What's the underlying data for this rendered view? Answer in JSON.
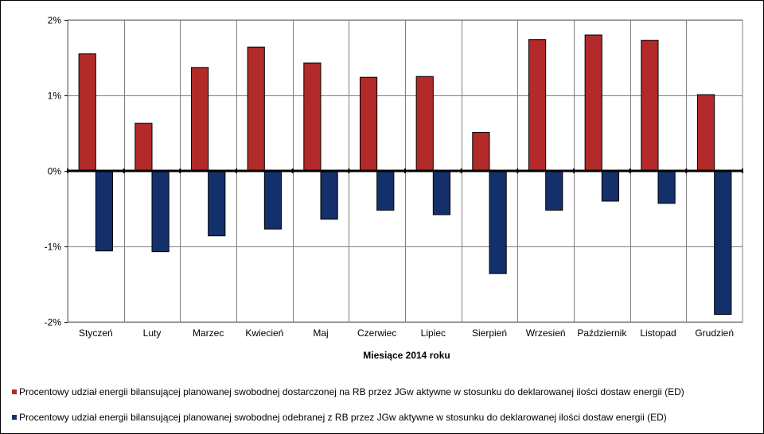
{
  "chart_data": {
    "type": "bar",
    "xlabel": "Miesiące 2014 roku",
    "ylabel": "",
    "title": "",
    "ylim": [
      -2,
      2
    ],
    "yticks": [
      2,
      1,
      0,
      -1,
      -2
    ],
    "ytick_labels": [
      "2%",
      "1%",
      "0%",
      "-1%",
      "-2%"
    ],
    "grid": true,
    "legend_position": "bottom",
    "categories": [
      "Styczeń",
      "Luty",
      "Marzec",
      "Kwiecień",
      "Maj",
      "Czerwiec",
      "Lipiec",
      "Sierpień",
      "Wrzesień",
      "Październik",
      "Listopad",
      "Grudzień"
    ],
    "series": [
      {
        "name": "Procentowy udział energii bilansującej planowanej swobodnej dostarczonej na RB przez JGw aktywne w stosunku do deklarowanej ilości dostaw energii (ED)",
        "color": "#b22a2a",
        "values": [
          1.55,
          0.63,
          1.37,
          1.64,
          1.43,
          1.24,
          1.25,
          0.51,
          1.74,
          1.8,
          1.73,
          1.01
        ]
      },
      {
        "name": "Procentowy udział energii bilansującej planowanej swobodnej odebranej z RB przez JGw aktywne w stosunku do deklarowanej ilości dostaw energii (ED)",
        "color": "#14306a",
        "values": [
          -1.06,
          -1.07,
          -0.86,
          -0.77,
          -0.64,
          -0.52,
          -0.58,
          -1.36,
          -0.52,
          -0.4,
          -0.43,
          -1.9
        ]
      }
    ]
  }
}
